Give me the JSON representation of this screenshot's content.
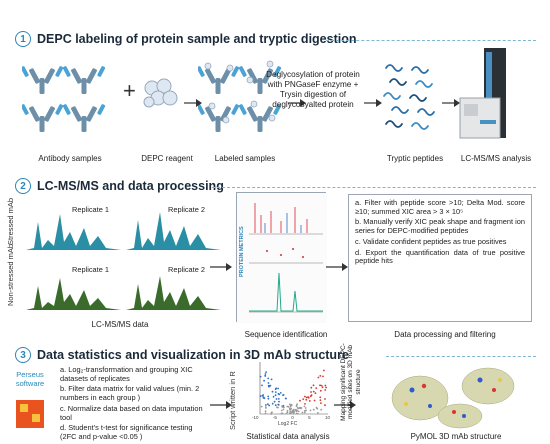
{
  "section1": {
    "number": "1",
    "title": "DEPC labeling of protein sample and tryptic digestion",
    "antibody_caption": "Antibody samples",
    "reagent_caption": "DEPC reagent",
    "labeled_caption": "Labeled samples",
    "deglyco_text": "Deglycosylation of protein with PNGaseF enzyme + Trysin digestion of deglycosyalted protein",
    "peptides_caption": "Tryptic peptides",
    "lcms_caption": "LC-MS/MS analysis",
    "plus_sign": "+"
  },
  "section2": {
    "number": "2",
    "title": "LC-MS/MS and data processing",
    "row_stressed": "Stressed mAb",
    "row_nonstressed": "Non-stressed mAb",
    "rep1_top": "Replicate 1",
    "rep2_top": "Replicate 2",
    "rep1_bottom": "Replicate 1",
    "rep2_bottom": "Replicate 2",
    "lcms_data_caption": "LC-MS/MS data",
    "software_label": "PROTEIN METRICS",
    "sequence_caption": "Sequence identification",
    "steps": [
      "a. Filter with peptide score >10; Delta Mod. score ≥10; summed XIC area > 3 × 10⁵",
      "b. Manually verify XIC peak shape and fragment ion series for DEPC-modified peptides",
      "c. Validate confident peptides as true positives",
      "d. Export the quantification data of true positive peptide hits"
    ],
    "processing_caption": "Data processing and filtering"
  },
  "section3": {
    "number": "3",
    "title": "Data statistics and visualization in 3D mAb structure",
    "perseus_label": "Perseus software",
    "steps": [
      "a. Log₂-transformation and grouping XIC datasets of replicates",
      "b. Filter data matrix for valid values (min. 2 numbers in each group )",
      "c. Normalize data based on data imputation tool",
      "d. Student's t-test for significance testing  (2FC and p-value <0.05 )"
    ],
    "script_label": "Script written in R",
    "volcano_ylabel": "-log10(pₐdⱼ)",
    "volcano_xlabel": "Log2 FC",
    "volcano_xticks": [
      "-10",
      "-5",
      "0",
      "5",
      "10"
    ],
    "stat_caption": "Statistical data analysis",
    "mapping_label": "Mapping significant DEPC-modified sites on 3D mAb structure",
    "pymol_caption": "PyMOL 3D mAb structure"
  },
  "colors": {
    "accent": "#2a87b8",
    "title": "#1b2a3a",
    "stressed_chrom": "#2a8ea5",
    "nonstressed_chrom": "#3a6b2a",
    "volcano_up": "#d9342b",
    "volcano_down": "#2f6fc1",
    "volcano_ns": "#9a9a9a"
  }
}
